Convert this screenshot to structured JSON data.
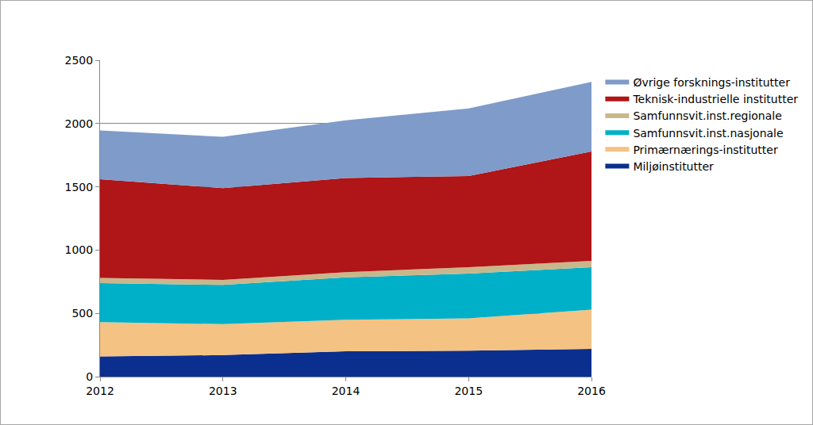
{
  "chart_data": {
    "type": "area",
    "stacked": true,
    "x": [
      2012,
      2013,
      2014,
      2015,
      2016
    ],
    "xlim": [
      2012,
      2016
    ],
    "xticks": [
      2012,
      2013,
      2014,
      2015,
      2016
    ],
    "ylim": [
      0,
      2500
    ],
    "yticks": [
      0,
      500,
      1000,
      1500,
      2000,
      2500
    ],
    "grid": true,
    "legend": "right",
    "series": [
      {
        "name": "Miljøinstitutter",
        "color": "#0b2f8f",
        "values": [
          160,
          170,
          200,
          205,
          220
        ]
      },
      {
        "name": "Primærnærings-institutter",
        "color": "#f4c283",
        "values": [
          270,
          245,
          250,
          255,
          310
        ]
      },
      {
        "name": "Samfunnsvit.inst.nasjonale",
        "color": "#00b0c9",
        "values": [
          310,
          310,
          335,
          355,
          335
        ]
      },
      {
        "name": "Samfunnsvit.inst.regionale",
        "color": "#c9b78c",
        "values": [
          40,
          40,
          40,
          50,
          50
        ]
      },
      {
        "name": "Teknisk-industrielle institutter",
        "color": "#b01517",
        "values": [
          780,
          725,
          745,
          720,
          865
        ]
      },
      {
        "name": "Øvrige forsknings-institutter",
        "color": "#7f9bc9",
        "values": [
          385,
          405,
          455,
          535,
          550
        ]
      }
    ]
  }
}
